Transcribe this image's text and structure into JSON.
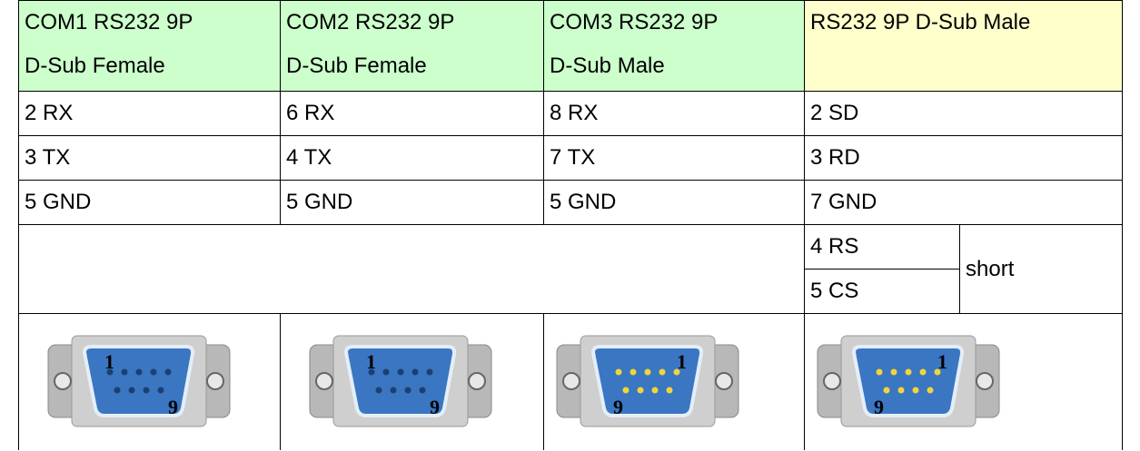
{
  "table": {
    "header": [
      [
        "COM1 RS232 9P",
        "D-Sub Female"
      ],
      [
        "COM2 RS232 9P",
        "D-Sub Female"
      ],
      [
        "COM3 RS232 9P",
        "D-Sub Male"
      ],
      [
        "RS232 9P D-Sub Male"
      ]
    ],
    "rows": [
      [
        "2 RX",
        "6 RX",
        "8 RX",
        "2 SD"
      ],
      [
        "3 TX",
        "4 TX",
        "7 TX",
        "3 RD"
      ],
      [
        "5 GND",
        "5 GND",
        "5 GND",
        "7 GND"
      ]
    ],
    "handshake": {
      "pins": [
        "4 RS",
        "5 CS"
      ],
      "note": "short"
    },
    "connectors": [
      {
        "first": "1",
        "last": "9"
      },
      {
        "first": "1",
        "last": "9"
      },
      {
        "first": "1",
        "last": "9"
      },
      {
        "first": "1",
        "last": "9"
      }
    ]
  }
}
